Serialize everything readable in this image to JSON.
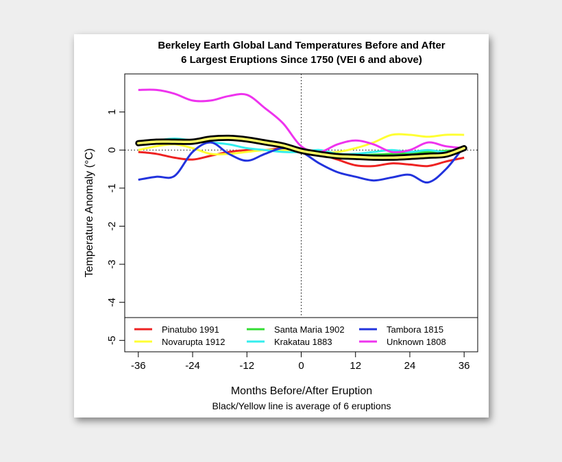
{
  "chart_data": {
    "type": "line",
    "title_line1": "Berkeley Earth Global Land Temperatures Before and After",
    "title_line2": "6 Largest Eruptions Since 1750 (VEI 6 and above)",
    "xlabel": "Months Before/After Eruption",
    "ylabel": "Temperature Anomaly (°C)",
    "note": "Black/Yellow line is average of 6 eruptions",
    "xlim": [
      -39,
      39
    ],
    "ylim": [
      -5.3,
      2.0
    ],
    "x_ticks": [
      -36,
      -24,
      -12,
      0,
      12,
      24,
      36
    ],
    "x_tick_labels": [
      "-36",
      "-24",
      "-12",
      "0",
      "12",
      "24",
      "36"
    ],
    "y_ticks": [
      1,
      0,
      -1,
      -2,
      -3,
      -4,
      -5
    ],
    "y_tick_labels": [
      "1",
      "0",
      "-1",
      "-2",
      "-3",
      "-4",
      "-5"
    ],
    "reference_lines": {
      "horizontal_y": 0,
      "vertical_x": 0,
      "style": "dotted"
    },
    "grid": false,
    "legend_position": "bottom",
    "x": [
      -36,
      -32,
      -28,
      -24,
      -20,
      -16,
      -12,
      -8,
      -4,
      0,
      4,
      8,
      12,
      16,
      20,
      24,
      28,
      32,
      36
    ],
    "series": [
      {
        "name": "Pinatubo 1991",
        "color": "#ee2222",
        "values": [
          -0.05,
          -0.1,
          -0.2,
          -0.25,
          -0.15,
          -0.05,
          0.0,
          0.0,
          0.05,
          0.0,
          -0.1,
          -0.25,
          -0.4,
          -0.42,
          -0.35,
          -0.38,
          -0.42,
          -0.3,
          -0.2
        ]
      },
      {
        "name": "Novarupta 1912",
        "color": "#ffff33",
        "values": [
          0.0,
          0.1,
          0.15,
          0.05,
          -0.1,
          -0.1,
          -0.05,
          0.0,
          0.0,
          0.0,
          -0.05,
          -0.05,
          0.05,
          0.2,
          0.4,
          0.4,
          0.35,
          0.4,
          0.4
        ]
      },
      {
        "name": "Santa Maria 1902",
        "color": "#33dd33",
        "values": [
          0.2,
          0.22,
          0.2,
          0.25,
          0.3,
          0.28,
          0.25,
          0.2,
          0.1,
          0.0,
          -0.1,
          -0.15,
          -0.15,
          -0.12,
          -0.1,
          -0.08,
          -0.05,
          -0.02,
          0.0
        ]
      },
      {
        "name": "Krakatau 1883",
        "color": "#33eeee",
        "values": [
          0.2,
          0.25,
          0.3,
          0.25,
          0.2,
          0.15,
          0.05,
          0.0,
          -0.05,
          -0.05,
          0.0,
          -0.1,
          -0.1,
          -0.05,
          0.0,
          -0.05,
          0.0,
          -0.05,
          0.05
        ]
      },
      {
        "name": "Tambora 1815",
        "color": "#2233dd",
        "values": [
          -0.78,
          -0.7,
          -0.68,
          -0.05,
          0.2,
          -0.1,
          -0.28,
          -0.1,
          0.05,
          -0.05,
          -0.35,
          -0.58,
          -0.7,
          -0.8,
          -0.72,
          -0.65,
          -0.85,
          -0.5,
          0.1
        ]
      },
      {
        "name": "Unknown 1808",
        "color": "#ee33ee",
        "values": [
          1.58,
          1.58,
          1.48,
          1.3,
          1.3,
          1.42,
          1.45,
          1.1,
          0.7,
          0.1,
          -0.05,
          0.15,
          0.25,
          0.15,
          -0.05,
          0.0,
          0.2,
          0.1,
          0.05
        ]
      }
    ],
    "average": {
      "outer_color": "#000000",
      "inner_color": "#ffff66",
      "values": [
        0.18,
        0.22,
        0.22,
        0.22,
        0.3,
        0.32,
        0.28,
        0.2,
        0.12,
        -0.02,
        -0.1,
        -0.16,
        -0.18,
        -0.2,
        -0.2,
        -0.18,
        -0.15,
        -0.12,
        0.05
      ]
    }
  }
}
